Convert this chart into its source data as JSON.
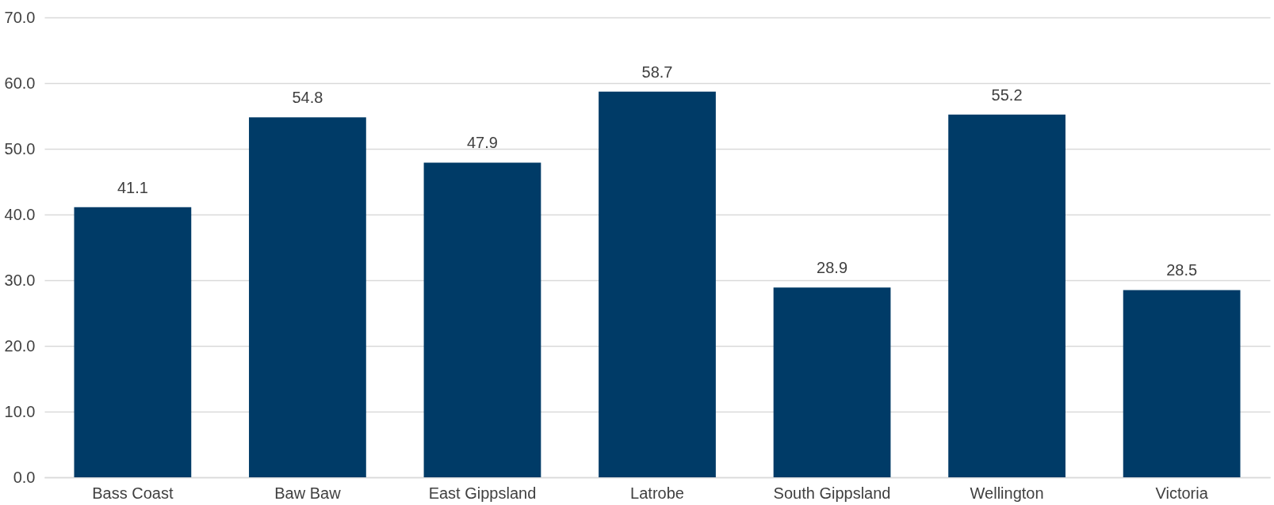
{
  "chart_data": {
    "type": "bar",
    "categories": [
      "Bass Coast",
      "Baw Baw",
      "East Gippsland",
      "Latrobe",
      "South Gippsland",
      "Wellington",
      "Victoria"
    ],
    "values": [
      41.1,
      54.8,
      47.9,
      58.7,
      28.9,
      55.2,
      28.5
    ],
    "color": "#003b67",
    "ylim": [
      0,
      70
    ],
    "yticks": [
      {
        "value": 0,
        "label": "0.0"
      },
      {
        "value": 10,
        "label": "10.0"
      },
      {
        "value": 20,
        "label": "20.0"
      },
      {
        "value": 30,
        "label": "30.0"
      },
      {
        "value": 40,
        "label": "40.0"
      },
      {
        "value": 50,
        "label": "50.0"
      },
      {
        "value": 60,
        "label": "60.0"
      },
      {
        "value": 70,
        "label": "70.0"
      }
    ],
    "grid": "y",
    "data_labels": true
  }
}
